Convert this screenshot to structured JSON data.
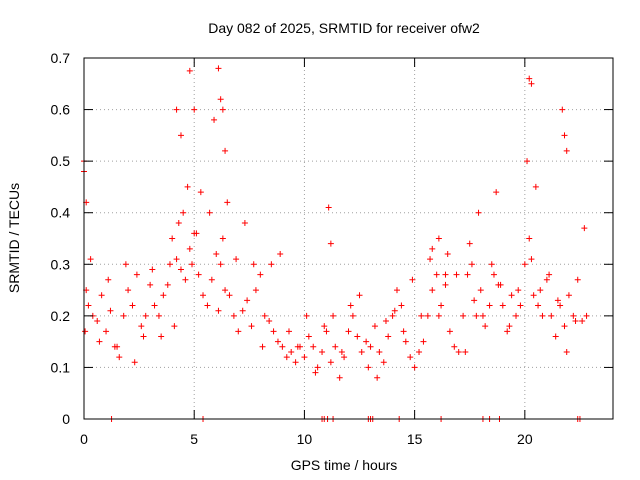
{
  "chart_data": {
    "type": "scatter",
    "title": "Day 082 of 2025, SRMTID for receiver ofw2",
    "xlabel": "GPS time / hours",
    "ylabel": "SRMTID / TECUs",
    "xlim": [
      0,
      24
    ],
    "ylim": [
      0,
      0.7
    ],
    "xticks": [
      0,
      5,
      10,
      15,
      20
    ],
    "xtick_labels": [
      "0",
      "5",
      "10",
      "15",
      "20"
    ],
    "yticks": [
      0,
      0.1,
      0.2,
      0.3,
      0.4,
      0.5,
      0.6,
      0.7
    ],
    "ytick_labels": [
      "0",
      "0.1",
      "0.2",
      "0.3",
      "0.4",
      "0.5",
      "0.6",
      "0.7"
    ],
    "grid": true,
    "marker": "+",
    "color": "#ff0000",
    "series": [
      {
        "name": "SRMTID",
        "x": [
          0.0,
          0.1,
          0.2,
          0.4,
          0.6,
          0.8,
          1.0,
          1.2,
          1.4,
          1.6,
          1.8,
          2.0,
          2.2,
          2.4,
          2.6,
          2.8,
          3.0,
          3.2,
          3.4,
          3.6,
          3.8,
          4.0,
          4.2,
          4.4,
          4.6,
          4.8,
          5.0,
          5.2,
          5.4,
          5.6,
          5.8,
          6.0,
          6.2,
          6.4,
          6.6,
          6.8,
          7.0,
          7.2,
          7.4,
          7.6,
          7.8,
          8.0,
          8.2,
          8.4,
          8.6,
          8.8,
          9.0,
          9.2,
          9.4,
          9.6,
          9.8,
          10.0,
          10.2,
          10.4,
          10.6,
          10.8,
          11.0,
          11.2,
          11.4,
          11.6,
          11.8,
          12.0,
          12.2,
          12.4,
          12.6,
          12.8,
          13.0,
          13.2,
          13.4,
          13.6,
          13.8,
          14.0,
          14.2,
          14.4,
          14.6,
          14.8,
          15.0,
          15.2,
          15.4,
          15.6,
          15.8,
          16.0,
          16.2,
          16.4,
          16.6,
          16.8,
          17.0,
          17.2,
          17.4,
          17.6,
          17.8,
          18.0,
          18.2,
          18.4,
          18.6,
          18.8,
          19.0,
          19.2,
          19.4,
          19.6,
          19.8,
          20.0,
          20.1,
          20.2,
          20.4,
          20.6,
          20.8,
          21.0,
          21.2,
          21.4,
          21.6,
          21.8,
          22.0,
          22.2,
          22.4,
          22.6,
          22.8,
          0.05,
          0.3,
          0.7,
          1.1,
          1.5,
          1.9,
          2.3,
          2.7,
          3.1,
          3.5,
          3.9,
          4.1,
          4.3,
          4.5,
          4.7,
          4.9,
          5.1,
          5.3,
          5.7,
          6.1,
          6.3,
          6.5,
          6.9,
          7.3,
          7.7,
          8.1,
          8.5,
          8.9,
          9.3,
          9.7,
          10.1,
          10.5,
          10.9,
          11.3,
          11.7,
          12.1,
          12.5,
          12.9,
          13.3,
          13.7,
          14.1,
          14.5,
          14.9,
          15.3,
          15.7,
          16.1,
          16.5,
          16.9,
          17.3,
          17.7,
          18.1,
          18.5,
          18.9,
          19.3,
          19.7,
          20.3,
          20.7,
          21.1,
          21.5,
          21.9,
          22.3,
          22.7,
          4.8,
          5.0,
          6.1,
          6.2,
          6.3,
          20.2,
          20.3,
          21.7,
          21.8,
          21.9,
          4.2,
          4.4,
          5.9,
          6.4,
          20.5,
          0.0,
          0.1,
          11.1,
          11.2,
          15.8,
          16.1,
          16.4,
          17.5,
          17.9,
          18.7,
          1.25,
          5.4,
          10.8,
          10.9,
          11.05,
          11.3,
          12.9,
          13.0,
          13.1,
          14.3,
          16.2,
          18.1,
          18.4,
          18.85,
          22.4,
          22.5
        ],
        "y": [
          0.48,
          0.25,
          0.22,
          0.2,
          0.19,
          0.24,
          0.17,
          0.21,
          0.14,
          0.12,
          0.2,
          0.25,
          0.22,
          0.28,
          0.18,
          0.2,
          0.26,
          0.22,
          0.2,
          0.24,
          0.26,
          0.35,
          0.31,
          0.29,
          0.27,
          0.33,
          0.36,
          0.28,
          0.24,
          0.22,
          0.27,
          0.32,
          0.3,
          0.25,
          0.24,
          0.2,
          0.17,
          0.21,
          0.23,
          0.18,
          0.25,
          0.28,
          0.2,
          0.19,
          0.17,
          0.15,
          0.14,
          0.12,
          0.13,
          0.11,
          0.14,
          0.12,
          0.16,
          0.14,
          0.1,
          0.13,
          0.17,
          0.11,
          0.14,
          0.08,
          0.12,
          0.17,
          0.2,
          0.16,
          0.13,
          0.15,
          0.14,
          0.18,
          0.13,
          0.11,
          0.16,
          0.2,
          0.25,
          0.22,
          0.15,
          0.12,
          0.1,
          0.13,
          0.15,
          0.2,
          0.25,
          0.28,
          0.22,
          0.26,
          0.17,
          0.14,
          0.13,
          0.2,
          0.28,
          0.3,
          0.2,
          0.25,
          0.18,
          0.22,
          0.28,
          0.26,
          0.22,
          0.17,
          0.24,
          0.2,
          0.22,
          0.3,
          0.5,
          0.35,
          0.24,
          0.22,
          0.2,
          0.27,
          0.2,
          0.16,
          0.22,
          0.18,
          0.24,
          0.2,
          0.27,
          0.19,
          0.2,
          0.17,
          0.31,
          0.15,
          0.27,
          0.14,
          0.3,
          0.11,
          0.16,
          0.29,
          0.16,
          0.3,
          0.18,
          0.38,
          0.4,
          0.45,
          0.3,
          0.36,
          0.44,
          0.4,
          0.21,
          0.35,
          0.42,
          0.31,
          0.38,
          0.3,
          0.14,
          0.3,
          0.32,
          0.17,
          0.14,
          0.2,
          0.09,
          0.18,
          0.2,
          0.13,
          0.22,
          0.24,
          0.1,
          0.08,
          0.19,
          0.21,
          0.17,
          0.27,
          0.2,
          0.31,
          0.2,
          0.32,
          0.28,
          0.13,
          0.23,
          0.2,
          0.3,
          0.26,
          0.18,
          0.25,
          0.31,
          0.25,
          0.28,
          0.23,
          0.13,
          0.19,
          0.37,
          0.675,
          0.6,
          0.68,
          0.62,
          0.6,
          0.66,
          0.65,
          0.6,
          0.55,
          0.52,
          0.6,
          0.55,
          0.58,
          0.52,
          0.45,
          0.5,
          0.42,
          0.41,
          0.34,
          0.33,
          0.35,
          0.28,
          0.34,
          0.4,
          0.44,
          0.0,
          0.0,
          0.0,
          0.0,
          0.0,
          0.0,
          0.0,
          0.0,
          0.0,
          0.0,
          0.0,
          0.0,
          0.0,
          0.0,
          0.0,
          0.0
        ]
      }
    ]
  }
}
